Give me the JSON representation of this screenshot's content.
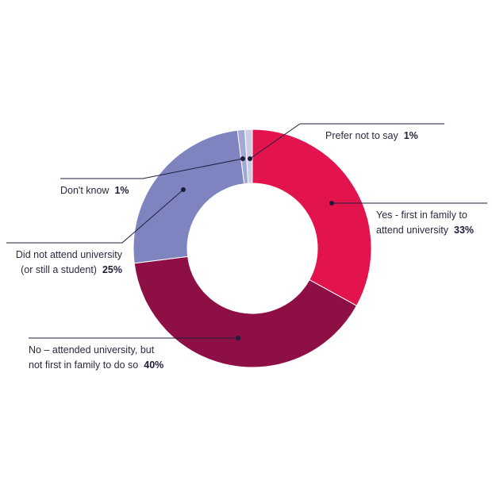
{
  "chart_data": {
    "type": "pie",
    "style": "donut",
    "slices": [
      {
        "label": "Yes - first in family to attend university",
        "label_lines": [
          "Yes - first in family to",
          "attend university"
        ],
        "value": 33,
        "value_label": "33%",
        "color": "#e2134d"
      },
      {
        "label": "No – attended university, but not first in family to do so",
        "label_lines": [
          "No – attended university, but",
          "not first in family to do so"
        ],
        "value": 40,
        "value_label": "40%",
        "color": "#8d0f45"
      },
      {
        "label": "Did not attend university (or still a student)",
        "label_lines": [
          "Did not attend university",
          "(or still a student)"
        ],
        "value": 25,
        "value_label": "25%",
        "color": "#7e84c0"
      },
      {
        "label": "Don't know",
        "label_lines": [
          "Don't know"
        ],
        "value": 1,
        "value_label": "1%",
        "color": "#a3a8d4"
      },
      {
        "label": "Prefer not to say",
        "label_lines": [
          "Prefer not to say"
        ],
        "value": 1,
        "value_label": "1%",
        "color": "#cbcde6"
      }
    ],
    "legend": "none (leader-line callouts)"
  }
}
